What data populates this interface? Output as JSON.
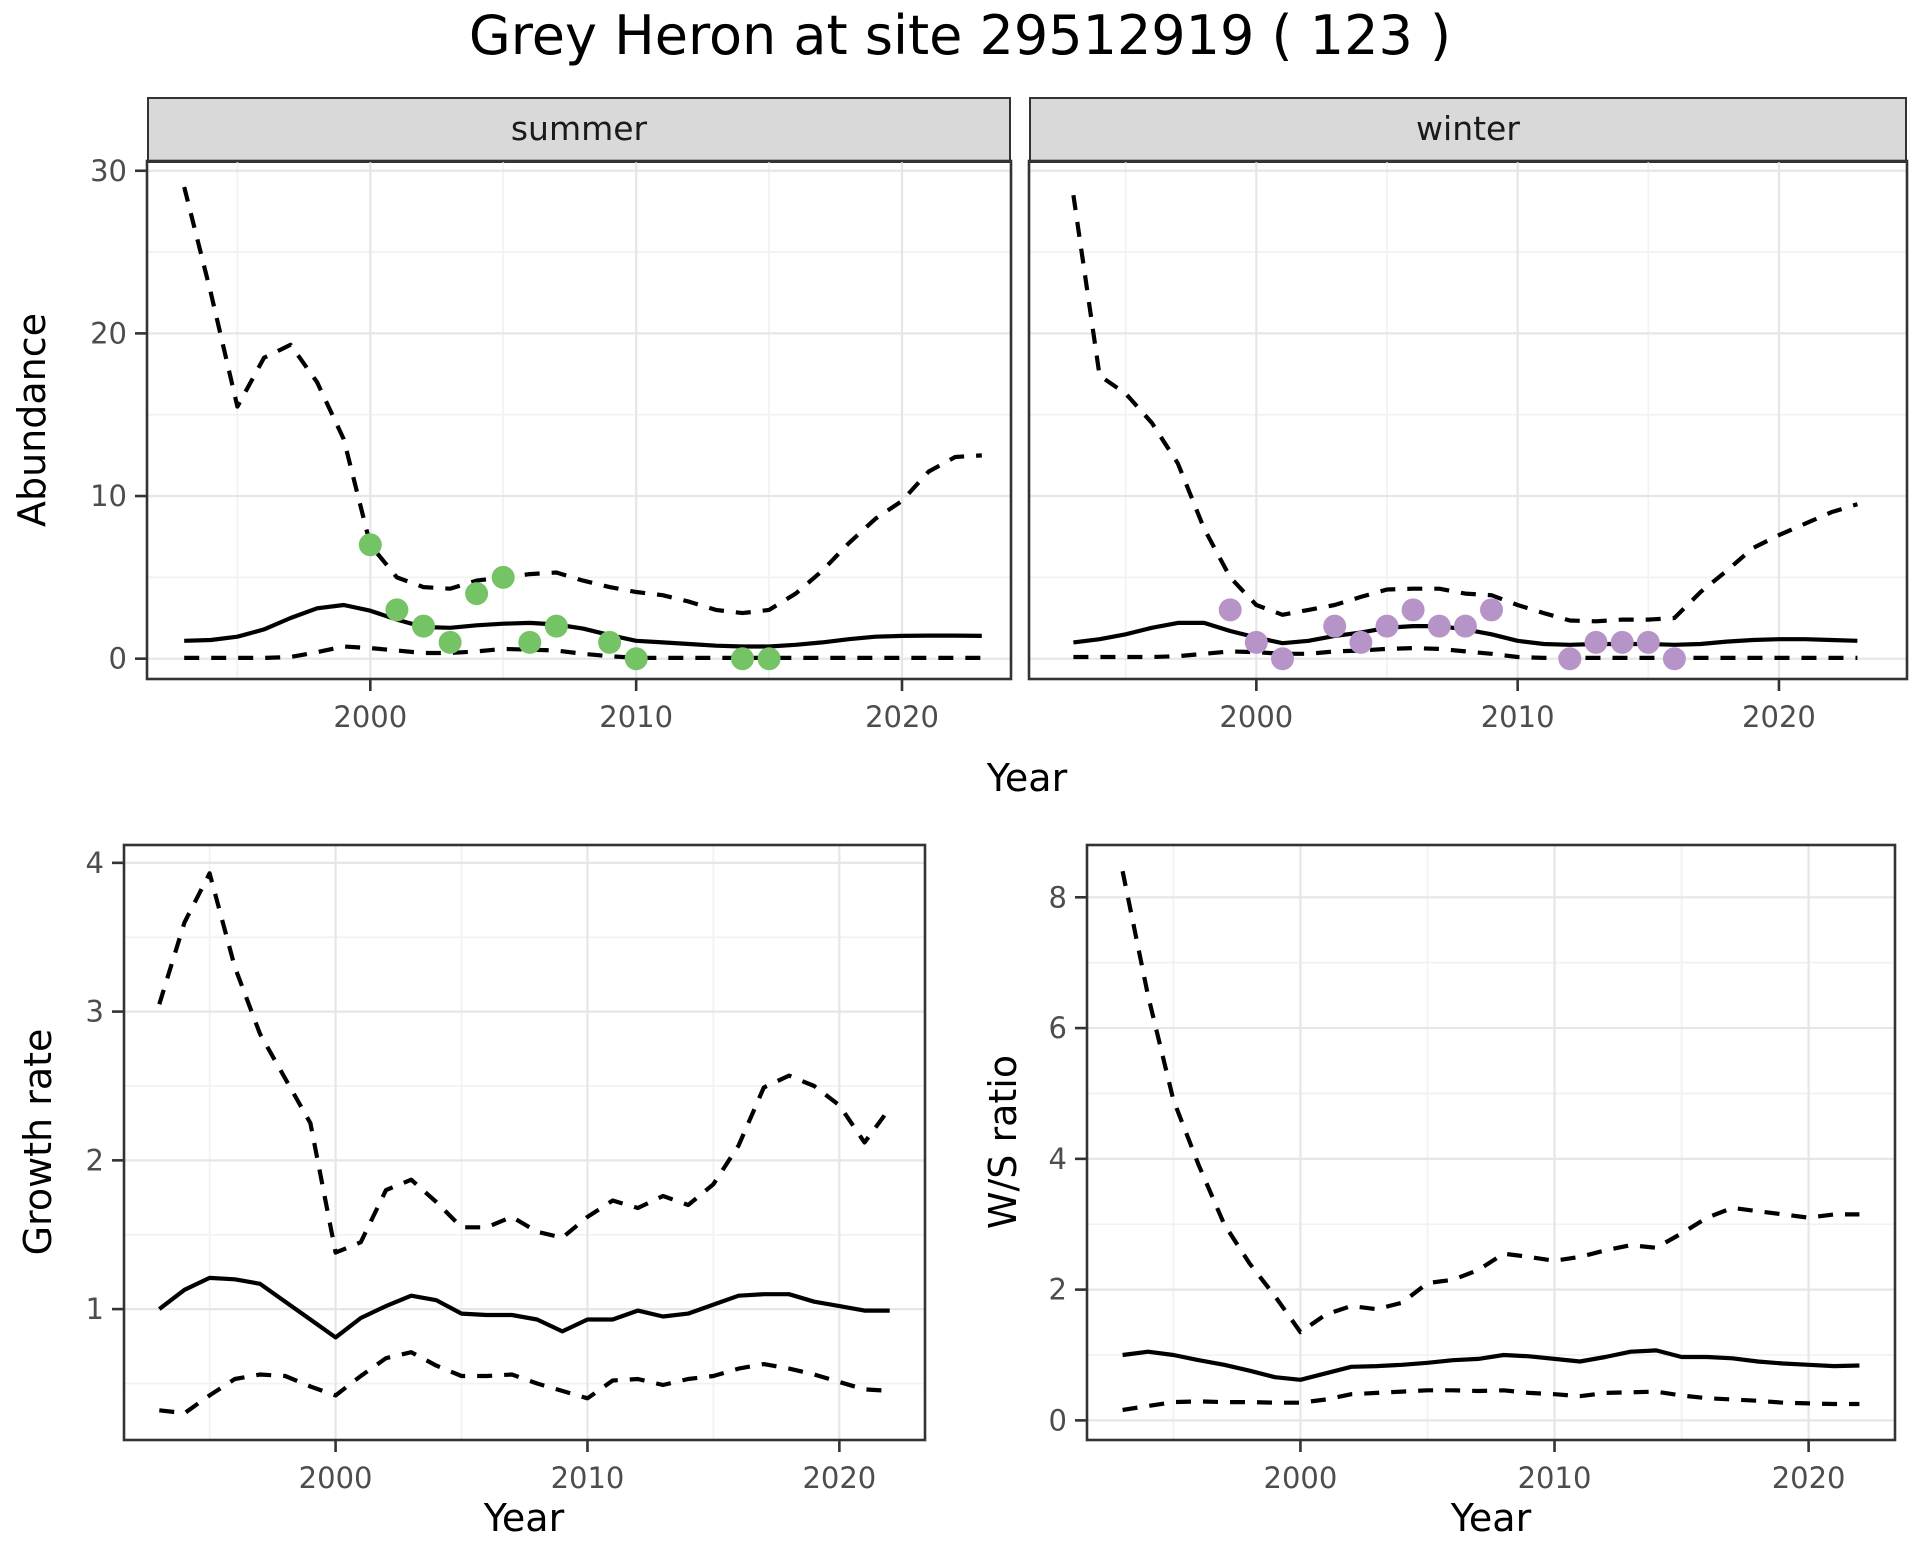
{
  "title": "Grey Heron at site 29512919 ( 123 )",
  "facets": [
    "summer",
    "winter"
  ],
  "axes": {
    "abundance": "Abundance",
    "year": "Year",
    "growth_rate": "Growth rate",
    "ws_ratio": "W/S ratio"
  },
  "colors": {
    "summer_points": "#74C365",
    "winter_points": "#B794C8",
    "line": "#000000",
    "grid_major": "#E6E6E6",
    "grid_minor": "#F2F2F2",
    "panel_border": "#333333",
    "strip_bg": "#D9D9D9",
    "tick_text": "#4D4D4D"
  },
  "chart_data": [
    {
      "id": "abundance-summer",
      "type": "line",
      "facet": "summer",
      "xlabel": "Year",
      "ylabel": "Abundance",
      "xlim": [
        1991.6,
        2024.1
      ],
      "ylim": [
        -1.25,
        30.6
      ],
      "x_ticks": [
        2000,
        2010,
        2020
      ],
      "x_minor": [
        1995,
        2005,
        2015
      ],
      "y_ticks": [
        0,
        10,
        20,
        30
      ],
      "y_minor": [
        5,
        15,
        25
      ],
      "years": [
        1993,
        1994,
        1995,
        1996,
        1997,
        1998,
        1999,
        2000,
        2001,
        2002,
        2003,
        2004,
        2005,
        2006,
        2007,
        2008,
        2009,
        2010,
        2011,
        2012,
        2013,
        2014,
        2015,
        2016,
        2017,
        2018,
        2019,
        2020,
        2021,
        2022,
        2023
      ],
      "series": [
        {
          "name": "upper_ci",
          "style": "dashed",
          "values": [
            29,
            22.5,
            15.5,
            18.5,
            19.3,
            17,
            13.5,
            7,
            5,
            4.4,
            4.3,
            4.8,
            5,
            5.2,
            5.3,
            4.8,
            4.4,
            4.1,
            3.9,
            3.5,
            3,
            2.8,
            3,
            4,
            5.4,
            7.1,
            8.6,
            9.7,
            11.5,
            12.4,
            12.5
          ]
        },
        {
          "name": "median",
          "style": "solid",
          "values": [
            1.1,
            1.15,
            1.35,
            1.8,
            2.5,
            3.1,
            3.3,
            2.95,
            2.4,
            1.95,
            1.9,
            2.05,
            2.15,
            2.2,
            2.1,
            1.85,
            1.45,
            1.1,
            1,
            0.9,
            0.8,
            0.75,
            0.75,
            0.85,
            1,
            1.2,
            1.35,
            1.4,
            1.42,
            1.42,
            1.4
          ]
        },
        {
          "name": "lower_ci",
          "style": "dashed",
          "values": [
            0.05,
            0.05,
            0.05,
            0.05,
            0.1,
            0.4,
            0.75,
            0.65,
            0.5,
            0.35,
            0.35,
            0.45,
            0.6,
            0.55,
            0.5,
            0.3,
            0.15,
            0.05,
            0.05,
            0.05,
            0.05,
            0.05,
            0.05,
            0.05,
            0.05,
            0.05,
            0.05,
            0.05,
            0.05,
            0.05,
            0.05
          ]
        }
      ],
      "points": {
        "name": "observed-counts-summer",
        "color_key": "summer_points",
        "x": [
          2000,
          2001,
          2002,
          2003,
          2004,
          2005,
          2006,
          2007,
          2009,
          2010,
          2014,
          2015
        ],
        "y": [
          7,
          3,
          2,
          1,
          4,
          5,
          1,
          2,
          1,
          0,
          0,
          0
        ]
      }
    },
    {
      "id": "abundance-winter",
      "type": "line",
      "facet": "winter",
      "xlabel": "Year",
      "ylabel": "Abundance",
      "xlim": [
        1991.3,
        2024.9
      ],
      "ylim": [
        -1.25,
        30.6
      ],
      "x_ticks": [
        2000,
        2010,
        2020
      ],
      "x_minor": [
        1995,
        2005,
        2015
      ],
      "y_ticks": [
        0,
        10,
        20,
        30
      ],
      "y_minor": [
        5,
        15,
        25
      ],
      "years": [
        1993,
        1994,
        1995,
        1996,
        1997,
        1998,
        1999,
        2000,
        2001,
        2002,
        2003,
        2004,
        2005,
        2006,
        2007,
        2008,
        2009,
        2010,
        2011,
        2012,
        2013,
        2014,
        2015,
        2016,
        2017,
        2018,
        2019,
        2020,
        2021,
        2022,
        2023
      ],
      "series": [
        {
          "name": "upper_ci",
          "style": "dashed",
          "values": [
            28.5,
            17.4,
            16.3,
            14.5,
            12,
            8,
            5,
            3.3,
            2.7,
            3,
            3.3,
            3.8,
            4.25,
            4.3,
            4.3,
            4,
            3.9,
            3.3,
            2.8,
            2.35,
            2.3,
            2.4,
            2.4,
            2.5,
            4.1,
            5.4,
            6.8,
            7.6,
            8.3,
            9,
            9.5
          ]
        },
        {
          "name": "median",
          "style": "solid",
          "values": [
            1,
            1.2,
            1.5,
            1.9,
            2.2,
            2.2,
            1.7,
            1.3,
            0.95,
            1.1,
            1.4,
            1.6,
            1.9,
            2,
            2,
            1.8,
            1.5,
            1.1,
            0.9,
            0.85,
            0.9,
            0.9,
            0.9,
            0.85,
            0.9,
            1.05,
            1.15,
            1.2,
            1.2,
            1.15,
            1.1
          ]
        },
        {
          "name": "lower_ci",
          "style": "dashed",
          "values": [
            0.1,
            0.1,
            0.1,
            0.1,
            0.15,
            0.3,
            0.45,
            0.4,
            0.3,
            0.3,
            0.45,
            0.5,
            0.6,
            0.65,
            0.6,
            0.45,
            0.3,
            0.1,
            0.05,
            0.05,
            0.05,
            0.05,
            0.05,
            0.05,
            0.05,
            0.05,
            0.05,
            0.05,
            0.05,
            0.05,
            0.05
          ]
        }
      ],
      "points": {
        "name": "observed-counts-winter",
        "color_key": "winter_points",
        "x": [
          1999,
          2000,
          2001,
          2003,
          2004,
          2005,
          2006,
          2007,
          2008,
          2009,
          2012,
          2013,
          2014,
          2015,
          2016
        ],
        "y": [
          3,
          1,
          0,
          2,
          1,
          2,
          3,
          2,
          2,
          3,
          0,
          1,
          1,
          1,
          0
        ]
      }
    },
    {
      "id": "growth-rate",
      "type": "line",
      "facet": null,
      "xlabel": "Year",
      "ylabel": "Growth rate",
      "xlim": [
        1991.6,
        2023.4
      ],
      "ylim": [
        0.12,
        4.12
      ],
      "x_ticks": [
        2000,
        2010,
        2020
      ],
      "x_minor": [
        1995,
        2005,
        2015
      ],
      "y_ticks": [
        1,
        2,
        3,
        4
      ],
      "y_minor": [
        0.5,
        1.5,
        2.5,
        3.5
      ],
      "years": [
        1993,
        1994,
        1995,
        1996,
        1997,
        1998,
        1999,
        2000,
        2001,
        2002,
        2003,
        2004,
        2005,
        2006,
        2007,
        2008,
        2009,
        2010,
        2011,
        2012,
        2013,
        2014,
        2015,
        2016,
        2017,
        2018,
        2019,
        2020,
        2021,
        2022
      ],
      "series": [
        {
          "name": "upper_ci",
          "style": "dashed",
          "values": [
            3.05,
            3.6,
            3.93,
            3.3,
            2.85,
            2.55,
            2.25,
            1.38,
            1.45,
            1.8,
            1.87,
            1.72,
            1.55,
            1.55,
            1.62,
            1.52,
            1.48,
            1.62,
            1.73,
            1.68,
            1.76,
            1.7,
            1.84,
            2.1,
            2.49,
            2.57,
            2.5,
            2.37,
            2.12,
            2.35
          ]
        },
        {
          "name": "median",
          "style": "solid",
          "values": [
            1,
            1.13,
            1.21,
            1.2,
            1.17,
            1.05,
            0.93,
            0.81,
            0.94,
            1.02,
            1.09,
            1.06,
            0.97,
            0.96,
            0.96,
            0.93,
            0.85,
            0.93,
            0.93,
            0.99,
            0.95,
            0.97,
            1.03,
            1.09,
            1.1,
            1.1,
            1.05,
            1.02,
            0.99,
            0.99
          ]
        },
        {
          "name": "lower_ci",
          "style": "dashed",
          "values": [
            0.32,
            0.3,
            0.42,
            0.53,
            0.56,
            0.55,
            0.48,
            0.42,
            0.55,
            0.67,
            0.71,
            0.62,
            0.55,
            0.55,
            0.56,
            0.5,
            0.45,
            0.4,
            0.52,
            0.53,
            0.49,
            0.53,
            0.55,
            0.6,
            0.63,
            0.6,
            0.56,
            0.51,
            0.46,
            0.45
          ]
        }
      ],
      "points": null
    },
    {
      "id": "ws-ratio",
      "type": "line",
      "facet": null,
      "xlabel": "Year",
      "ylabel": "W/S ratio",
      "xlim": [
        1991.6,
        2023.4
      ],
      "ylim": [
        -0.3,
        8.8
      ],
      "x_ticks": [
        2000,
        2010,
        2020
      ],
      "x_minor": [
        1995,
        2005,
        2015
      ],
      "y_ticks": [
        0,
        2,
        4,
        6,
        8
      ],
      "y_minor": [
        1,
        3,
        5,
        7
      ],
      "years": [
        1993,
        1994,
        1995,
        1996,
        1997,
        1998,
        1999,
        2000,
        2001,
        2002,
        2003,
        2004,
        2005,
        2006,
        2007,
        2008,
        2009,
        2010,
        2011,
        2012,
        2013,
        2014,
        2015,
        2016,
        2017,
        2018,
        2019,
        2020,
        2021,
        2022
      ],
      "series": [
        {
          "name": "upper_ci",
          "style": "dashed",
          "values": [
            8.4,
            6.5,
            4.9,
            3.9,
            3,
            2.4,
            1.9,
            1.35,
            1.62,
            1.75,
            1.7,
            1.8,
            2.1,
            2.15,
            2.3,
            2.55,
            2.5,
            2.44,
            2.5,
            2.6,
            2.68,
            2.64,
            2.86,
            3.1,
            3.25,
            3.2,
            3.15,
            3.1,
            3.15,
            3.15
          ]
        },
        {
          "name": "median",
          "style": "solid",
          "values": [
            1,
            1.05,
            1,
            0.92,
            0.85,
            0.76,
            0.66,
            0.62,
            0.72,
            0.82,
            0.83,
            0.85,
            0.88,
            0.92,
            0.94,
            1,
            0.98,
            0.94,
            0.9,
            0.97,
            1.05,
            1.07,
            0.97,
            0.97,
            0.95,
            0.9,
            0.87,
            0.85,
            0.83,
            0.84
          ]
        },
        {
          "name": "lower_ci",
          "style": "dashed",
          "values": [
            0.16,
            0.22,
            0.28,
            0.29,
            0.28,
            0.28,
            0.27,
            0.27,
            0.32,
            0.4,
            0.42,
            0.44,
            0.46,
            0.46,
            0.45,
            0.46,
            0.42,
            0.4,
            0.37,
            0.42,
            0.43,
            0.44,
            0.38,
            0.34,
            0.32,
            0.3,
            0.27,
            0.26,
            0.25,
            0.25
          ]
        }
      ],
      "points": null
    }
  ]
}
